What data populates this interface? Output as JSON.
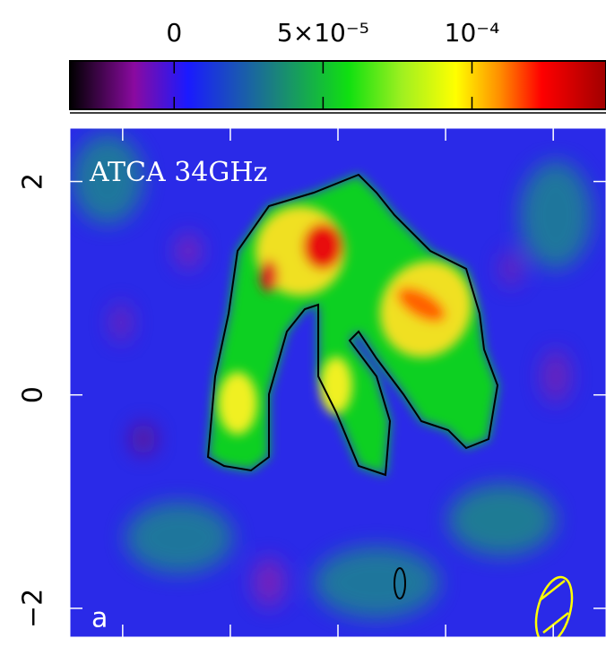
{
  "chart_data": {
    "type": "image",
    "annotations": [
      "ATCA 34GHz",
      "a"
    ],
    "clim": [
      -3.5e-05,
      0.000145
    ],
    "cticks": [
      {
        "value": 0,
        "label": "0"
      },
      {
        "value": 5e-05,
        "label": "5×10⁻⁵"
      },
      {
        "value": 0.0001,
        "label": "10⁻⁴"
      }
    ],
    "xlim": [
      2.49,
      -2.49
    ],
    "xticks": [
      2,
      1,
      0,
      -1,
      -2
    ],
    "ylim": [
      -2.27,
      2.5
    ],
    "yticks": [
      2,
      0,
      {
        "value": -2,
        "label": "−2"
      }
    ]
  }
}
